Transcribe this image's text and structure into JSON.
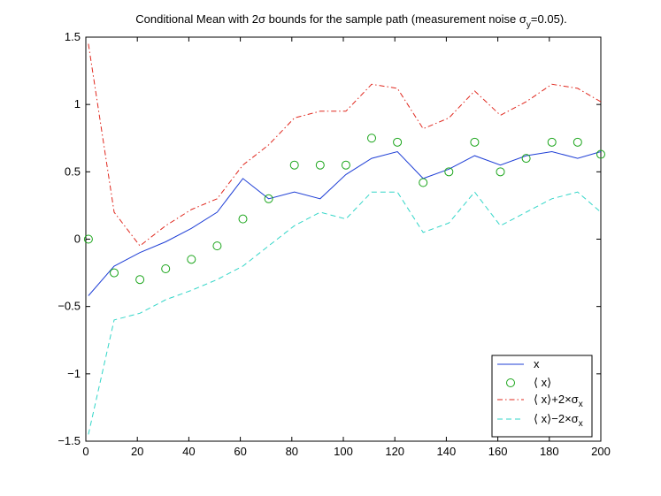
{
  "chart_data": {
    "type": "line",
    "title": "Conditional Mean with 2σ bounds for the sample path (measurement noise σ",
    "title_sub": "y",
    "title_tail": "=0.05).",
    "xlabel": "",
    "ylabel": "",
    "xlim": [
      0,
      200
    ],
    "ylim": [
      -1.5,
      1.5
    ],
    "xticks": [
      0,
      20,
      40,
      60,
      80,
      100,
      120,
      140,
      160,
      180,
      200
    ],
    "yticks": [
      -1.5,
      -1,
      -0.5,
      0,
      0.5,
      1,
      1.5
    ],
    "ytick_labels": [
      "−1.5",
      "−1",
      "−0.5",
      "0",
      "0.5",
      "1",
      "1.5"
    ],
    "legend_position": "bottom-right",
    "x": [
      1,
      11,
      21,
      31,
      41,
      51,
      61,
      71,
      81,
      91,
      101,
      111,
      121,
      131,
      141,
      151,
      161,
      171,
      181,
      191,
      200
    ],
    "series": [
      {
        "name": "x",
        "legend_label": "x",
        "color": "#1f3fd6",
        "style": "solid",
        "values": [
          -0.42,
          -0.2,
          -0.1,
          -0.02,
          0.08,
          0.2,
          0.45,
          0.3,
          0.35,
          0.3,
          0.48,
          0.6,
          0.65,
          0.45,
          0.52,
          0.62,
          0.55,
          0.62,
          0.65,
          0.6,
          0.65
        ]
      },
      {
        "name": "mean",
        "legend_label": "⟨ x⟩",
        "color": "#1aa51a",
        "style": "circles",
        "values": [
          0.0,
          -0.25,
          -0.3,
          -0.22,
          -0.15,
          -0.05,
          0.15,
          0.3,
          0.55,
          0.55,
          0.55,
          0.75,
          0.72,
          0.42,
          0.5,
          0.72,
          0.5,
          0.6,
          0.72,
          0.72,
          0.63
        ]
      },
      {
        "name": "upper",
        "legend_label_main": "⟨ x⟩+2×σ",
        "legend_label_sub": "x",
        "color": "#e0281e",
        "style": "dashdot",
        "values": [
          1.45,
          0.2,
          -0.05,
          0.1,
          0.22,
          0.3,
          0.55,
          0.7,
          0.9,
          0.95,
          0.95,
          1.15,
          1.12,
          0.82,
          0.9,
          1.1,
          0.92,
          1.02,
          1.15,
          1.12,
          1.02
        ]
      },
      {
        "name": "lower",
        "legend_label_main": "⟨ x⟩−2×σ",
        "legend_label_sub": "x",
        "color": "#33d6c8",
        "style": "dashdash",
        "values": [
          -1.45,
          -0.6,
          -0.55,
          -0.45,
          -0.38,
          -0.3,
          -0.2,
          -0.05,
          0.1,
          0.2,
          0.15,
          0.35,
          0.35,
          0.05,
          0.12,
          0.35,
          0.1,
          0.2,
          0.3,
          0.35,
          0.2
        ]
      }
    ]
  }
}
